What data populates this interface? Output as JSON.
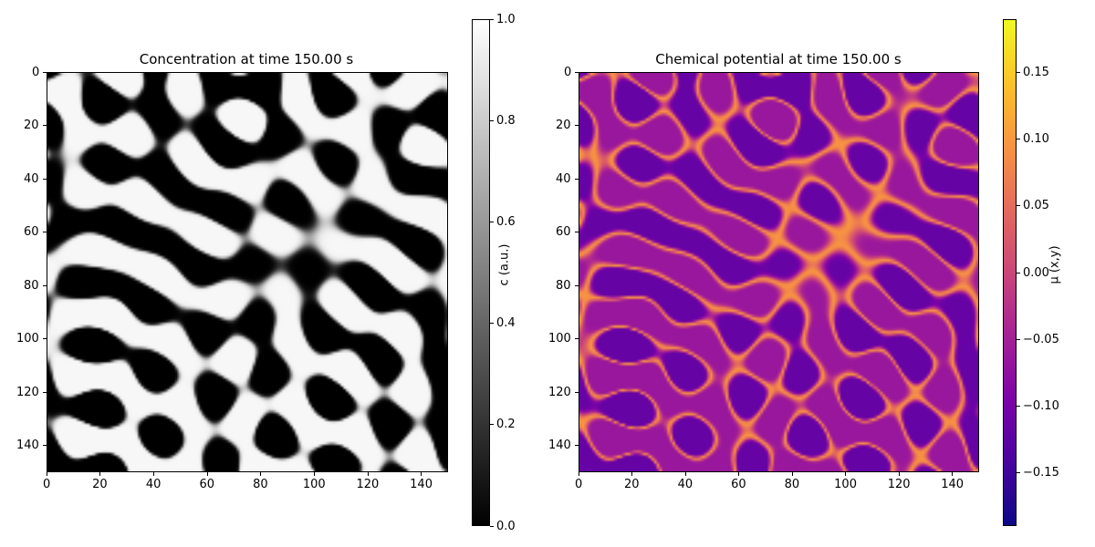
{
  "chart_data": [
    {
      "type": "heatmap",
      "title": "Concentration at time 150.00 s",
      "x_ticks": [
        0,
        20,
        40,
        60,
        80,
        100,
        120,
        140
      ],
      "y_ticks": [
        0,
        20,
        40,
        60,
        80,
        100,
        120,
        140
      ],
      "xlim": [
        0,
        150
      ],
      "ylim": [
        150,
        0
      ],
      "colormap": "gray",
      "colorbar": {
        "label": "c (a.u.)",
        "range": [
          0.0,
          1.0
        ],
        "ticks": [
          "0.0",
          "0.2",
          "0.4",
          "0.6",
          "0.8",
          "1.0"
        ],
        "tick_values": [
          0.0,
          0.2,
          0.4,
          0.6,
          0.8,
          1.0
        ]
      }
    },
    {
      "type": "heatmap",
      "title": "Chemical potential at time 150.00 s",
      "x_ticks": [
        0,
        20,
        40,
        60,
        80,
        100,
        120,
        140
      ],
      "y_ticks": [
        0,
        20,
        40,
        60,
        80,
        100,
        120,
        140
      ],
      "xlim": [
        0,
        150
      ],
      "ylim": [
        150,
        0
      ],
      "colormap": "plasma",
      "colorbar": {
        "label": "μ (x,y)",
        "range": [
          -0.19,
          0.19
        ],
        "ticks": [
          "−0.15",
          "−0.10",
          "−0.05",
          "0.00",
          "0.05",
          "0.10",
          "0.15"
        ],
        "tick_values": [
          -0.15,
          -0.1,
          -0.05,
          0.0,
          0.05,
          0.1,
          0.15
        ]
      }
    }
  ]
}
